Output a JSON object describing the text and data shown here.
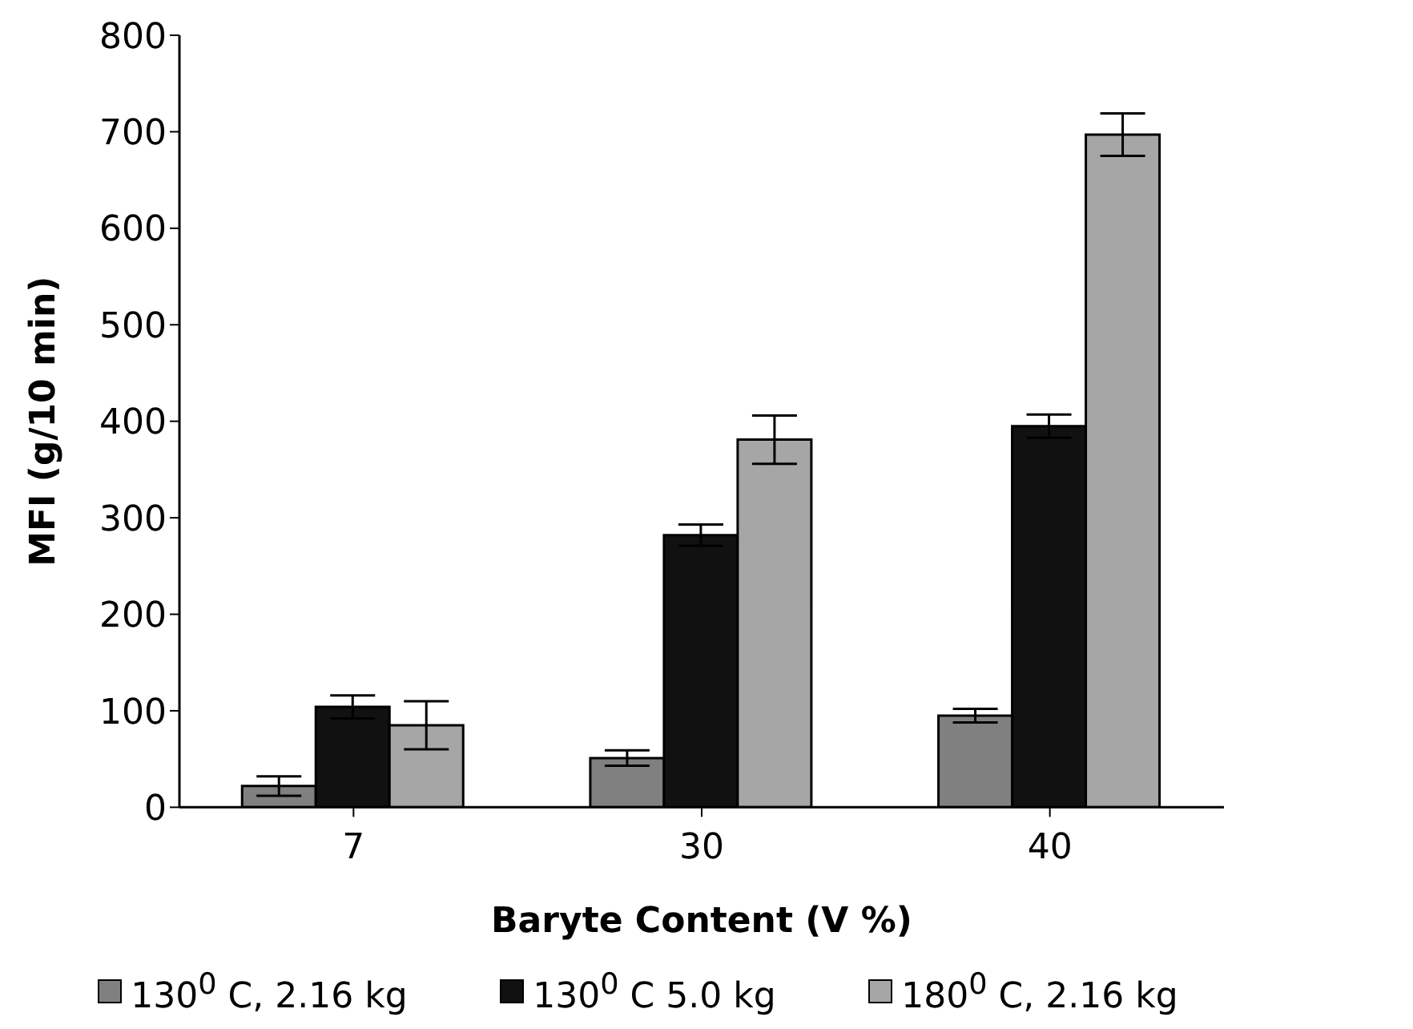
{
  "chart_data": {
    "type": "bar",
    "xlabel": "Baryte Content (V %)",
    "ylabel": "MFI (g/10 min)",
    "categories": [
      "7",
      "30",
      "40"
    ],
    "series": [
      {
        "name": "130$^{0}$ C, 2.16 kg",
        "color": "#808080",
        "values": [
          22,
          51,
          95
        ],
        "errors": [
          10,
          8,
          7
        ]
      },
      {
        "name": "130$^{0}$ C 5.0 kg",
        "color": "#111111",
        "values": [
          104,
          282,
          395
        ],
        "errors": [
          12,
          11,
          12
        ]
      },
      {
        "name": "180$^{0}$ C, 2.16 kg",
        "color": "#a6a6a6",
        "values": [
          85,
          381,
          697
        ],
        "errors": [
          25,
          25,
          22
        ]
      }
    ],
    "ylim": [
      0,
      800
    ],
    "yticks": [
      0,
      100,
      200,
      300,
      400,
      500,
      600,
      700,
      800
    ],
    "grid": false,
    "legend": "bottom"
  }
}
